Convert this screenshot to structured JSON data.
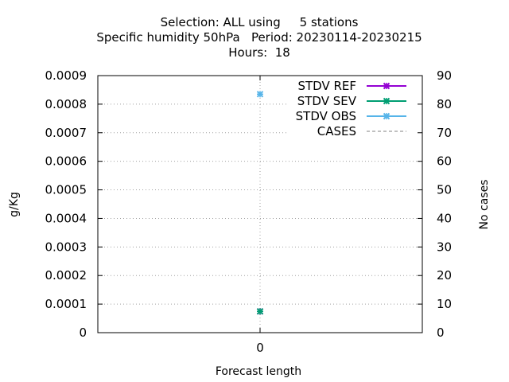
{
  "chart_data": {
    "type": "line",
    "title_lines": [
      "Selection: ALL using     5 stations",
      "Specific humidity 50hPa   Period: 20230114-20230215",
      "Hours:  18"
    ],
    "xlabel": "Forecast length",
    "ylabel": "g/Kg",
    "y2label": "No cases",
    "x_ticks": [
      0
    ],
    "x_tick_labels": [
      "0"
    ],
    "xlim": [
      -1,
      1
    ],
    "ylim": [
      0,
      0.0009
    ],
    "y_ticks": [
      0,
      0.0001,
      0.0002,
      0.0003,
      0.0004,
      0.0005,
      0.0006,
      0.0007,
      0.0008,
      0.0009
    ],
    "y_tick_labels": [
      "0",
      "0.0001",
      "0.0002",
      "0.0003",
      "0.0004",
      "0.0005",
      "0.0006",
      "0.0007",
      "0.0008",
      "0.0009"
    ],
    "y2lim": [
      0,
      90
    ],
    "y2_ticks": [
      0,
      10,
      20,
      30,
      40,
      50,
      60,
      70,
      80,
      90
    ],
    "y2_tick_labels": [
      "0",
      "10",
      "20",
      "30",
      "40",
      "50",
      "60",
      "70",
      "80",
      "90"
    ],
    "grid": true,
    "legend_position": "top-right",
    "series": [
      {
        "name": "STDV REF",
        "color": "#9400d3",
        "style": "line-cross",
        "axis": "y",
        "points": [
          [
            0,
            7.45e-05
          ]
        ]
      },
      {
        "name": "STDV SEV",
        "color": "#009e73",
        "style": "line-cross",
        "axis": "y",
        "points": [
          [
            0,
            7.45e-05
          ]
        ]
      },
      {
        "name": "STDV OBS",
        "color": "#56b4e9",
        "style": "line-cross",
        "axis": "y",
        "points": [
          [
            0,
            0.000835
          ]
        ]
      },
      {
        "name": "CASES",
        "color": "#808080",
        "style": "dashed",
        "axis": "y2",
        "points": []
      }
    ]
  }
}
